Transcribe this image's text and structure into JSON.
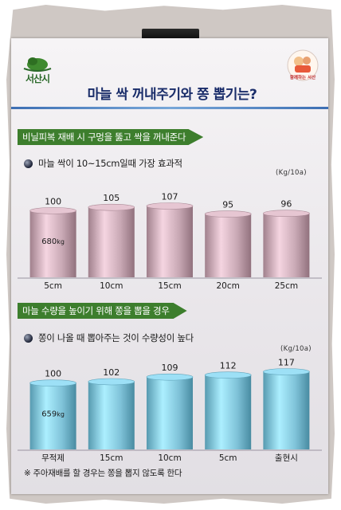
{
  "poster": {
    "title": "마늘 싹 꺼내주기와 쫑 뽑기는?",
    "logo_left_text": "서산시",
    "logo_right_text": "함께하는 서산"
  },
  "chart_data": [
    {
      "type": "bar",
      "banner": "비닐피복 재배 시 구멍을 뚫고 싹을 꺼내준다",
      "title": "마늘 싹이 10~15cm일때 가장 효과적",
      "unit": "(Kg/10a)",
      "categories": [
        "5cm",
        "10cm",
        "15cm",
        "20cm",
        "25cm"
      ],
      "values": [
        100,
        105,
        107,
        95,
        96
      ],
      "value_labels": [
        "100",
        "105",
        "107",
        "95",
        "96"
      ],
      "inner_label": {
        "index": 0,
        "value": "680",
        "unit": "kg"
      },
      "ylim": [
        0,
        110
      ],
      "bar_color": "#c8a8b4"
    },
    {
      "type": "bar",
      "banner": "마늘 수량을 높이기 위해 쫑을 뽑을 경우",
      "title": "쫑이 나올 때 뽑아주는 것이 수량성이 높다",
      "unit": "(Kg/10a)",
      "categories": [
        "무적제",
        "15cm",
        "10cm",
        "5cm",
        "출현시"
      ],
      "values": [
        100,
        102,
        109,
        112,
        117
      ],
      "value_labels": [
        "100",
        "102",
        "109",
        "112",
        "117"
      ],
      "inner_label": {
        "index": 0,
        "value": "659",
        "unit": "kg"
      },
      "ylim": [
        0,
        120
      ],
      "bar_color": "#7fc2d8"
    }
  ],
  "footnote": "※ 주아재배를 할 경우는 쫑을 뽑지 않도록 한다",
  "colors": {
    "title": "#1a2d6a",
    "banner": "#3d7e2d",
    "chart1_bar": "#c8a8b4",
    "chart2_bar": "#7fc2d8"
  }
}
